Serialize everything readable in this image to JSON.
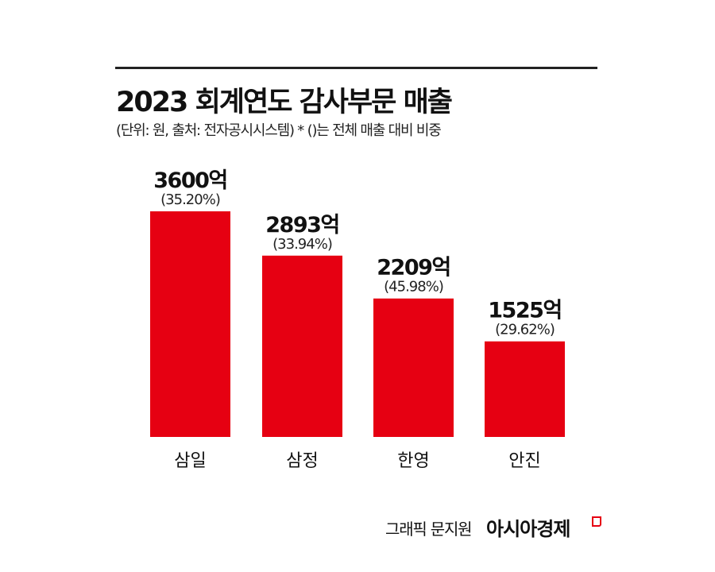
{
  "header": {
    "title": "2023 회계연도 감사부문 매출",
    "subtitle": "(단위: 원, 출처: 전자공시시스템)  * ()는 전체 매출 대비 비중"
  },
  "footer": {
    "credit": "그래픽 문지원",
    "logo_text": "아시아경제"
  },
  "colors": {
    "bar": "#e60012",
    "text": "#111111"
  },
  "chart_data": {
    "type": "bar",
    "title": "2023 회계연도 감사부문 매출",
    "xlabel": "",
    "ylabel": "",
    "unit": "억",
    "categories": [
      "삼일",
      "삼정",
      "한영",
      "안진"
    ],
    "values": [
      3600,
      2893,
      2209,
      1525
    ],
    "value_labels": [
      "3600억",
      "2893억",
      "2209억",
      "1525억"
    ],
    "share_labels": [
      "(35.20%)",
      "(33.94%)",
      "(45.98%)",
      "(29.62%)"
    ],
    "shares": [
      35.2,
      33.94,
      45.98,
      29.62
    ],
    "ylim": [
      0,
      3600
    ],
    "grid": false
  }
}
